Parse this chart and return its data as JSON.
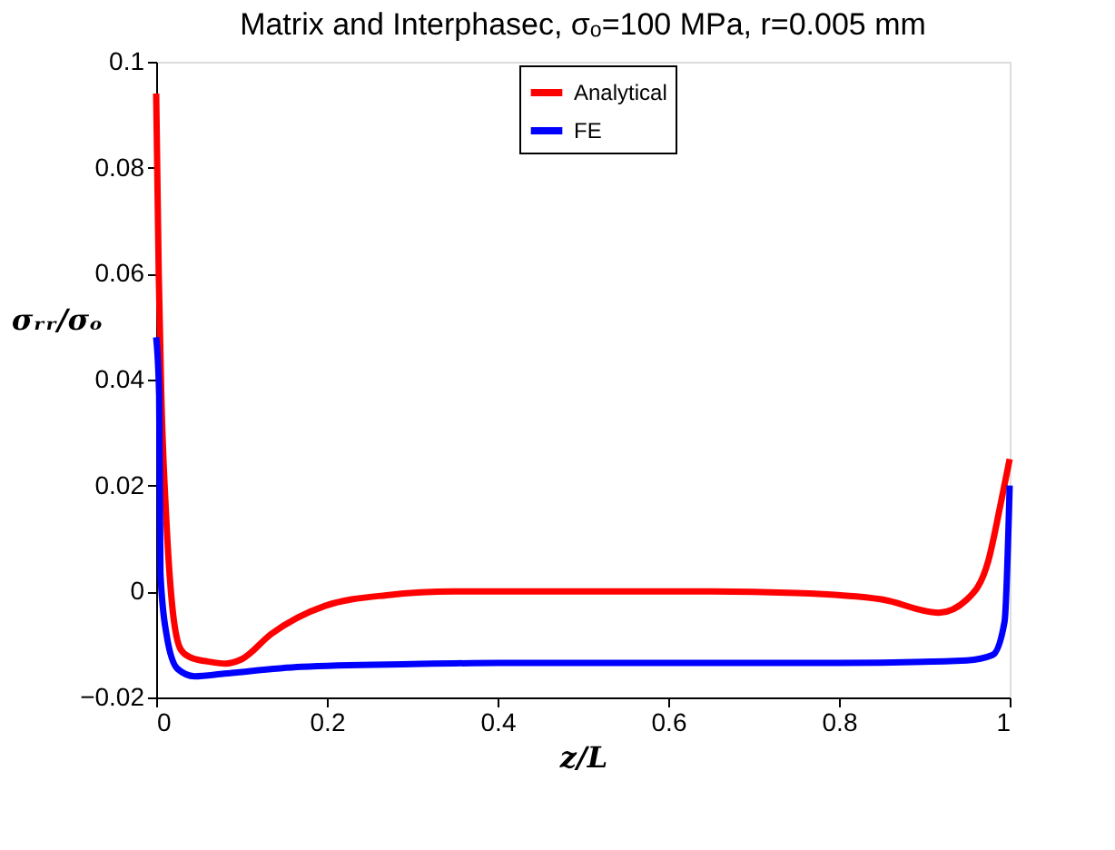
{
  "chart_data": {
    "type": "line",
    "title": "Matrix and Interphasec, σₒ=100 MPa, r=0.005 mm",
    "xlabel": "z/L",
    "ylabel": "σᵣᵣ/σₒ",
    "series": [
      {
        "name": "Analytical",
        "color": "#ff0000",
        "x": [
          0,
          0.003,
          0.006,
          0.0116,
          0.0186,
          0.029,
          0.041,
          0.06,
          0.082,
          0.1,
          0.135,
          0.198,
          0.27,
          0.35,
          0.5,
          0.65,
          0.75,
          0.85,
          0.917,
          0.95,
          0.975,
          0.99,
          1.0
        ],
        "values": [
          0.094,
          0.06,
          0.037,
          0.0146,
          -0.0024,
          -0.011,
          -0.0125,
          -0.0132,
          -0.0136,
          -0.0128,
          -0.008,
          -0.0027,
          -0.0007,
          0,
          0,
          0,
          -0.0003,
          -0.0015,
          -0.004,
          -0.0015,
          0.0058,
          0.017,
          0.025
        ]
      },
      {
        "name": "FE",
        "color": "#0000ff",
        "x": [
          0,
          0.0035,
          0.005,
          0.012,
          0.025,
          0.045,
          0.08,
          0.17,
          0.3,
          0.4,
          0.6,
          0.8,
          0.95,
          0.98,
          0.994,
          1.0
        ],
        "values": [
          0.048,
          0.037,
          0.0034,
          -0.008,
          -0.0146,
          -0.016,
          -0.0155,
          -0.0142,
          -0.0137,
          -0.0135,
          -0.0135,
          -0.0135,
          -0.013,
          -0.012,
          -0.0057,
          0.02
        ]
      }
    ],
    "xlim": [
      0,
      1
    ],
    "xticks": [
      0,
      0.2,
      0.4,
      0.6,
      0.8,
      1
    ],
    "ylim": [
      -0.02,
      0.1
    ],
    "yticks": [
      -0.02,
      0,
      0.02,
      0.04,
      0.06,
      0.08,
      0.1
    ],
    "grid": false,
    "legend": "top",
    "marker": "none",
    "line_style": "solid"
  }
}
